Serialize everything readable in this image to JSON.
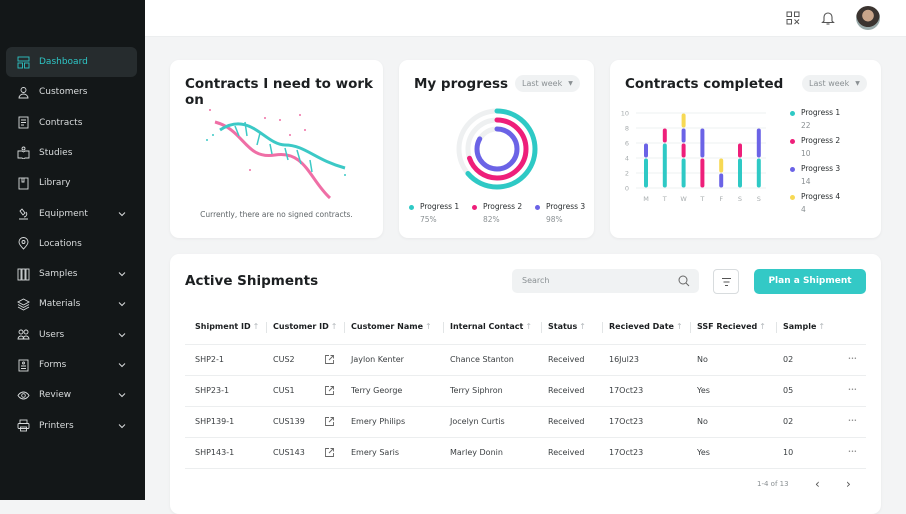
{
  "sidebar": {
    "items": [
      {
        "label": "Dashboard",
        "icon": "dashboard-icon",
        "active": true
      },
      {
        "label": "Customers",
        "icon": "user-icon"
      },
      {
        "label": "Contracts",
        "icon": "document-icon"
      },
      {
        "label": "Studies",
        "icon": "book-icon"
      },
      {
        "label": "Library",
        "icon": "library-icon"
      },
      {
        "label": "Equipment",
        "icon": "microscope-icon",
        "chevron": true
      },
      {
        "label": "Locations",
        "icon": "location-pin-icon"
      },
      {
        "label": "Samples",
        "icon": "test-tubes-icon",
        "chevron": true
      },
      {
        "label": "Materials",
        "icon": "layers-icon",
        "chevron": true
      },
      {
        "label": "Users",
        "icon": "users-icon",
        "chevron": true
      },
      {
        "label": "Forms",
        "icon": "form-icon",
        "chevron": true
      },
      {
        "label": "Review",
        "icon": "eye-icon",
        "chevron": true
      },
      {
        "label": "Printers",
        "icon": "printer-icon",
        "chevron": true
      }
    ]
  },
  "header": {
    "icons": [
      "qr-code-icon",
      "bell-icon",
      "avatar"
    ]
  },
  "contracts_card": {
    "title": "Contracts I need to work on",
    "empty_text": "Currently, there are no signed contracts."
  },
  "progress_card": {
    "title": "My progress",
    "filter": "Last week",
    "items": [
      {
        "label": "Progress 1",
        "value": "75%",
        "pct": 75,
        "color": "#2ec9c5"
      },
      {
        "label": "Progress 2",
        "value": "82%",
        "pct": 82,
        "color": "#ee1f7a"
      },
      {
        "label": "Progress 3",
        "value": "98%",
        "pct": 98,
        "color": "#6b63e6"
      }
    ]
  },
  "completed_card": {
    "title": "Contracts completed",
    "filter": "Last week"
  },
  "chart_data": {
    "type": "bar",
    "stacked": true,
    "categories": [
      "M",
      "T",
      "W",
      "T",
      "F",
      "S",
      "S"
    ],
    "ylim": [
      0,
      10
    ],
    "yticks": [
      "0",
      "2",
      "4",
      "6",
      "8",
      "10"
    ],
    "grid": true,
    "legend": "right",
    "series": [
      {
        "name": "Progress 1",
        "total": "22",
        "color": "#2ec9c5",
        "values": [
          4,
          6,
          4,
          0,
          0,
          4,
          4
        ]
      },
      {
        "name": "Progress 2",
        "total": "10",
        "color": "#ee1f7a",
        "values": [
          0,
          2,
          2,
          4,
          0,
          2,
          0
        ]
      },
      {
        "name": "Progress 3",
        "total": "14",
        "color": "#6b63e6",
        "values": [
          2,
          0,
          2,
          4,
          2,
          0,
          4
        ]
      },
      {
        "name": "Progress 4",
        "total": "4",
        "color": "#f7d954",
        "values": [
          0,
          0,
          2,
          0,
          2,
          0,
          0
        ]
      }
    ]
  },
  "shipments": {
    "title": "Active Shipments",
    "search_placeholder": "Search",
    "plan_button": "Plan a Shipment",
    "accent": "#33c9c6",
    "columns": [
      "Shipment ID",
      "Customer ID",
      "Customer Name",
      "Internal Contact",
      "Status",
      "Recieved Date",
      "SSF Recieved",
      "Sample"
    ],
    "rows": [
      [
        "SHP2-1",
        "CUS2",
        "Jaylon Kenter",
        "Chance Stanton",
        "Received",
        "16Jul23",
        "No",
        "02"
      ],
      [
        "SHP23-1",
        "CUS1",
        "Terry George",
        "Terry Siphron",
        "Received",
        "17Oct23",
        "Yes",
        "05"
      ],
      [
        "SHP139-1",
        "CUS139",
        "Emery Philips",
        "Jocelyn Curtis",
        "Received",
        "17Oct23",
        "No",
        "02"
      ],
      [
        "SHP143-1",
        "CUS143",
        "Emery Saris",
        "Marley Donin",
        "Received",
        "17Oct23",
        "Yes",
        "10"
      ]
    ],
    "pagination": "1-4 of 13"
  }
}
